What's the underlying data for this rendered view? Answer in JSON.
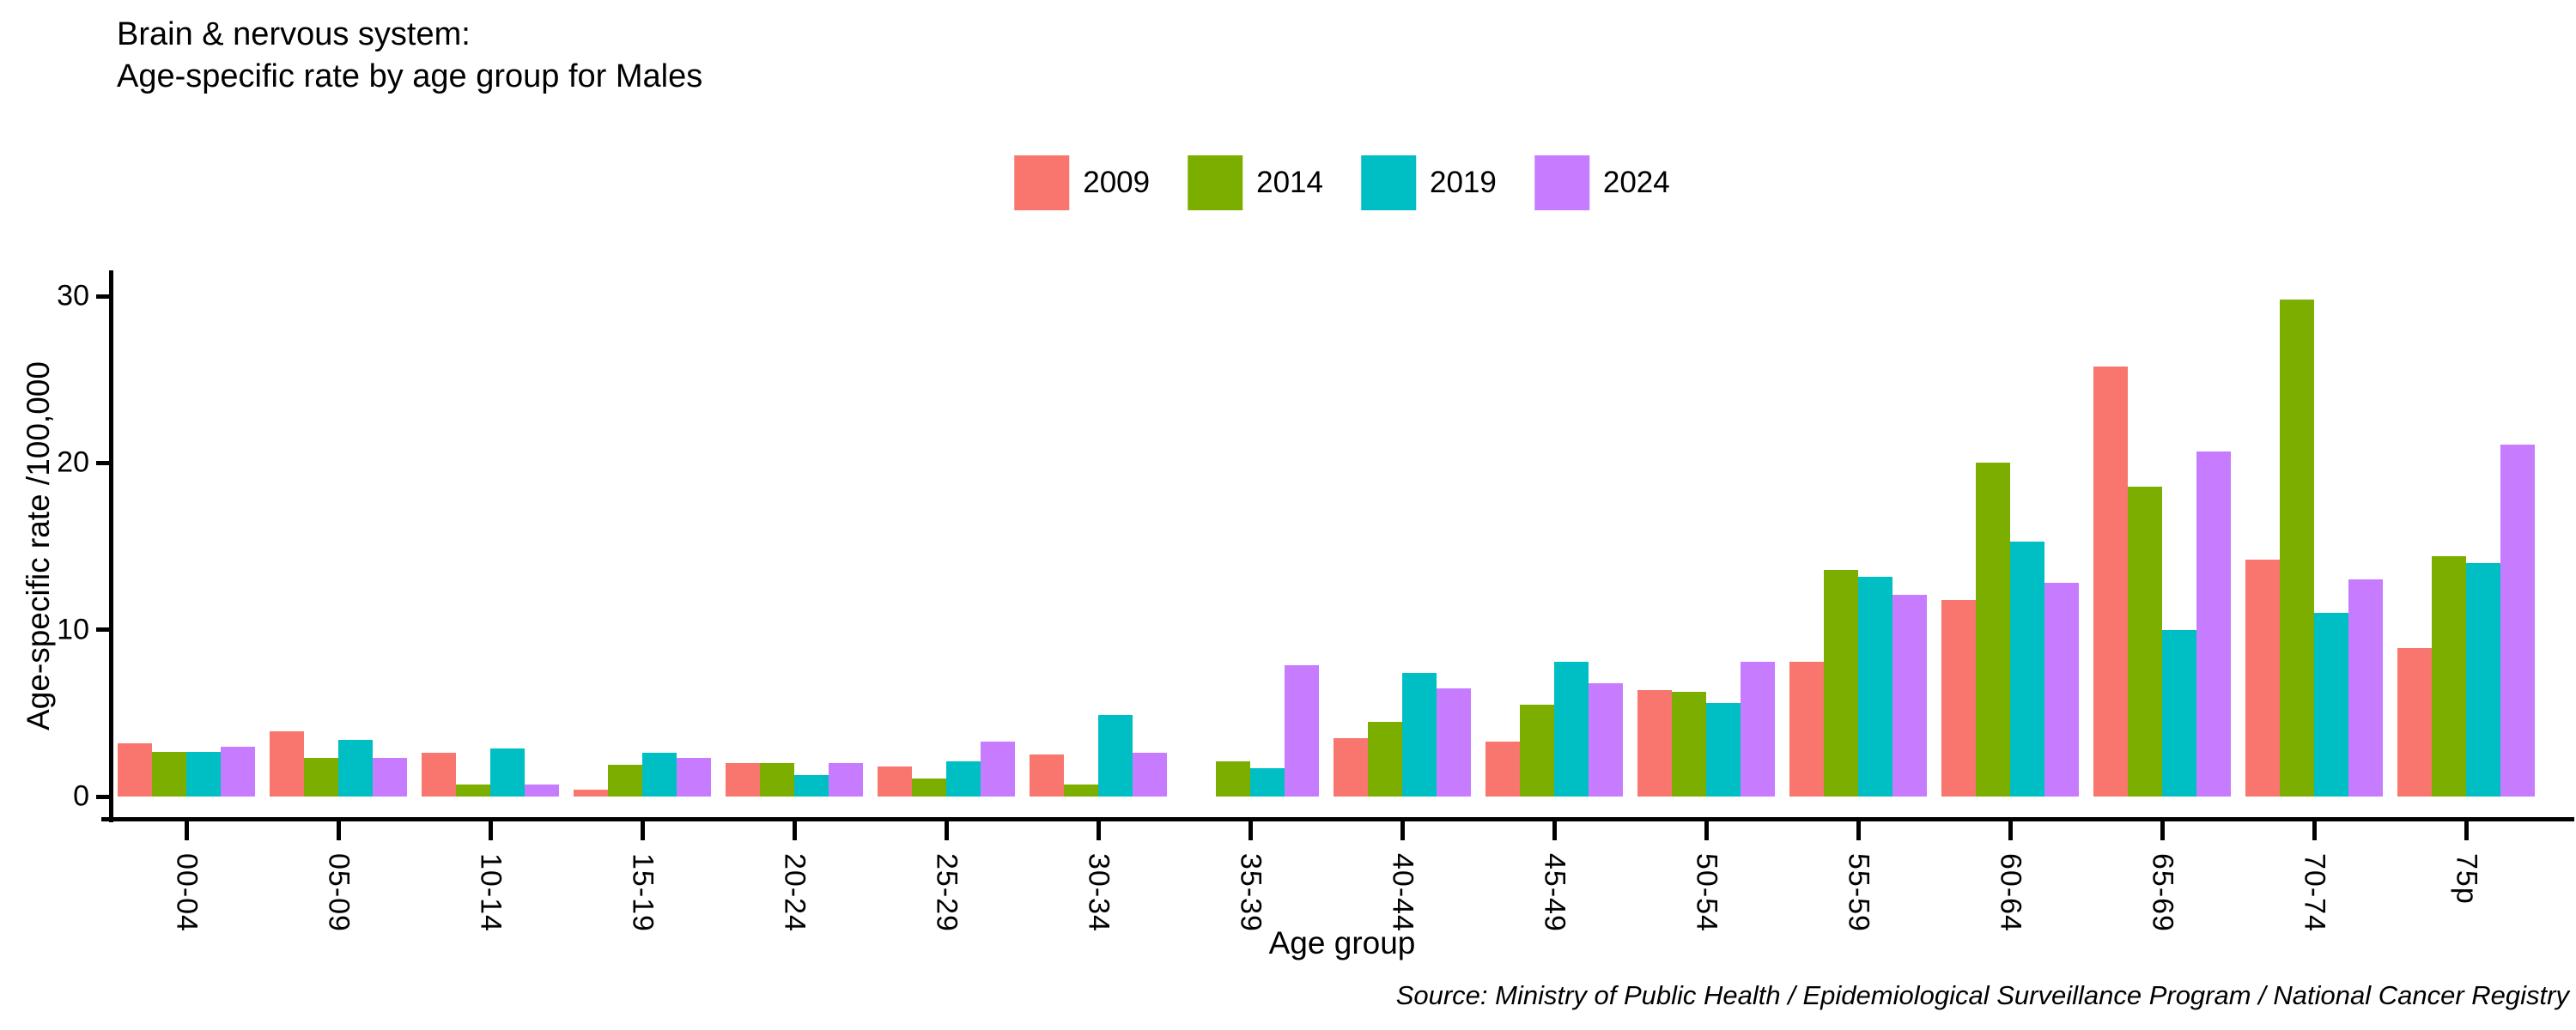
{
  "title": {
    "line1": "Brain & nervous system:",
    "line2": "Age-specific rate by age group for Males"
  },
  "source": {
    "text": "Source: Ministry of Public Health / Epidemiological Surveillance Program / National Cancer Registry"
  },
  "chart_data": {
    "type": "bar",
    "title": "Brain & nervous system: Age-specific rate by age group for Males",
    "xlabel": "Age group",
    "ylabel": "Age-specific rate /100,000",
    "grid": false,
    "legend_position": "top",
    "ylim": [
      0,
      31
    ],
    "yticks": [
      0,
      10,
      20,
      30
    ],
    "categories": [
      "00-04",
      "05-09",
      "10-14",
      "15-19",
      "20-24",
      "25-29",
      "30-34",
      "35-39",
      "40-44",
      "45-49",
      "50-54",
      "55-59",
      "60-64",
      "65-69",
      "70-74",
      "75p"
    ],
    "series": [
      {
        "name": "2009",
        "color": "#F8766D",
        "values": [
          3.2,
          3.9,
          2.6,
          0.4,
          2.0,
          1.8,
          2.5,
          0,
          3.5,
          3.3,
          6.4,
          8.1,
          11.8,
          25.8,
          14.2,
          8.9
        ]
      },
      {
        "name": "2014",
        "color": "#7CAE00",
        "values": [
          2.7,
          2.3,
          0.7,
          1.9,
          2.0,
          1.1,
          0.7,
          2.1,
          4.5,
          5.5,
          6.3,
          13.6,
          20.0,
          18.6,
          29.8,
          14.4
        ]
      },
      {
        "name": "2019",
        "color": "#00BFC4",
        "values": [
          2.7,
          3.4,
          2.9,
          2.6,
          1.3,
          2.1,
          4.9,
          1.7,
          7.4,
          8.1,
          5.6,
          13.2,
          15.3,
          10.0,
          11.0,
          14.0
        ]
      },
      {
        "name": "2024",
        "color": "#C77CFF",
        "values": [
          3.0,
          2.3,
          0.7,
          2.3,
          2.0,
          3.3,
          2.6,
          7.9,
          6.5,
          6.8,
          8.1,
          12.1,
          12.8,
          20.7,
          13.0,
          21.1
        ]
      }
    ]
  }
}
